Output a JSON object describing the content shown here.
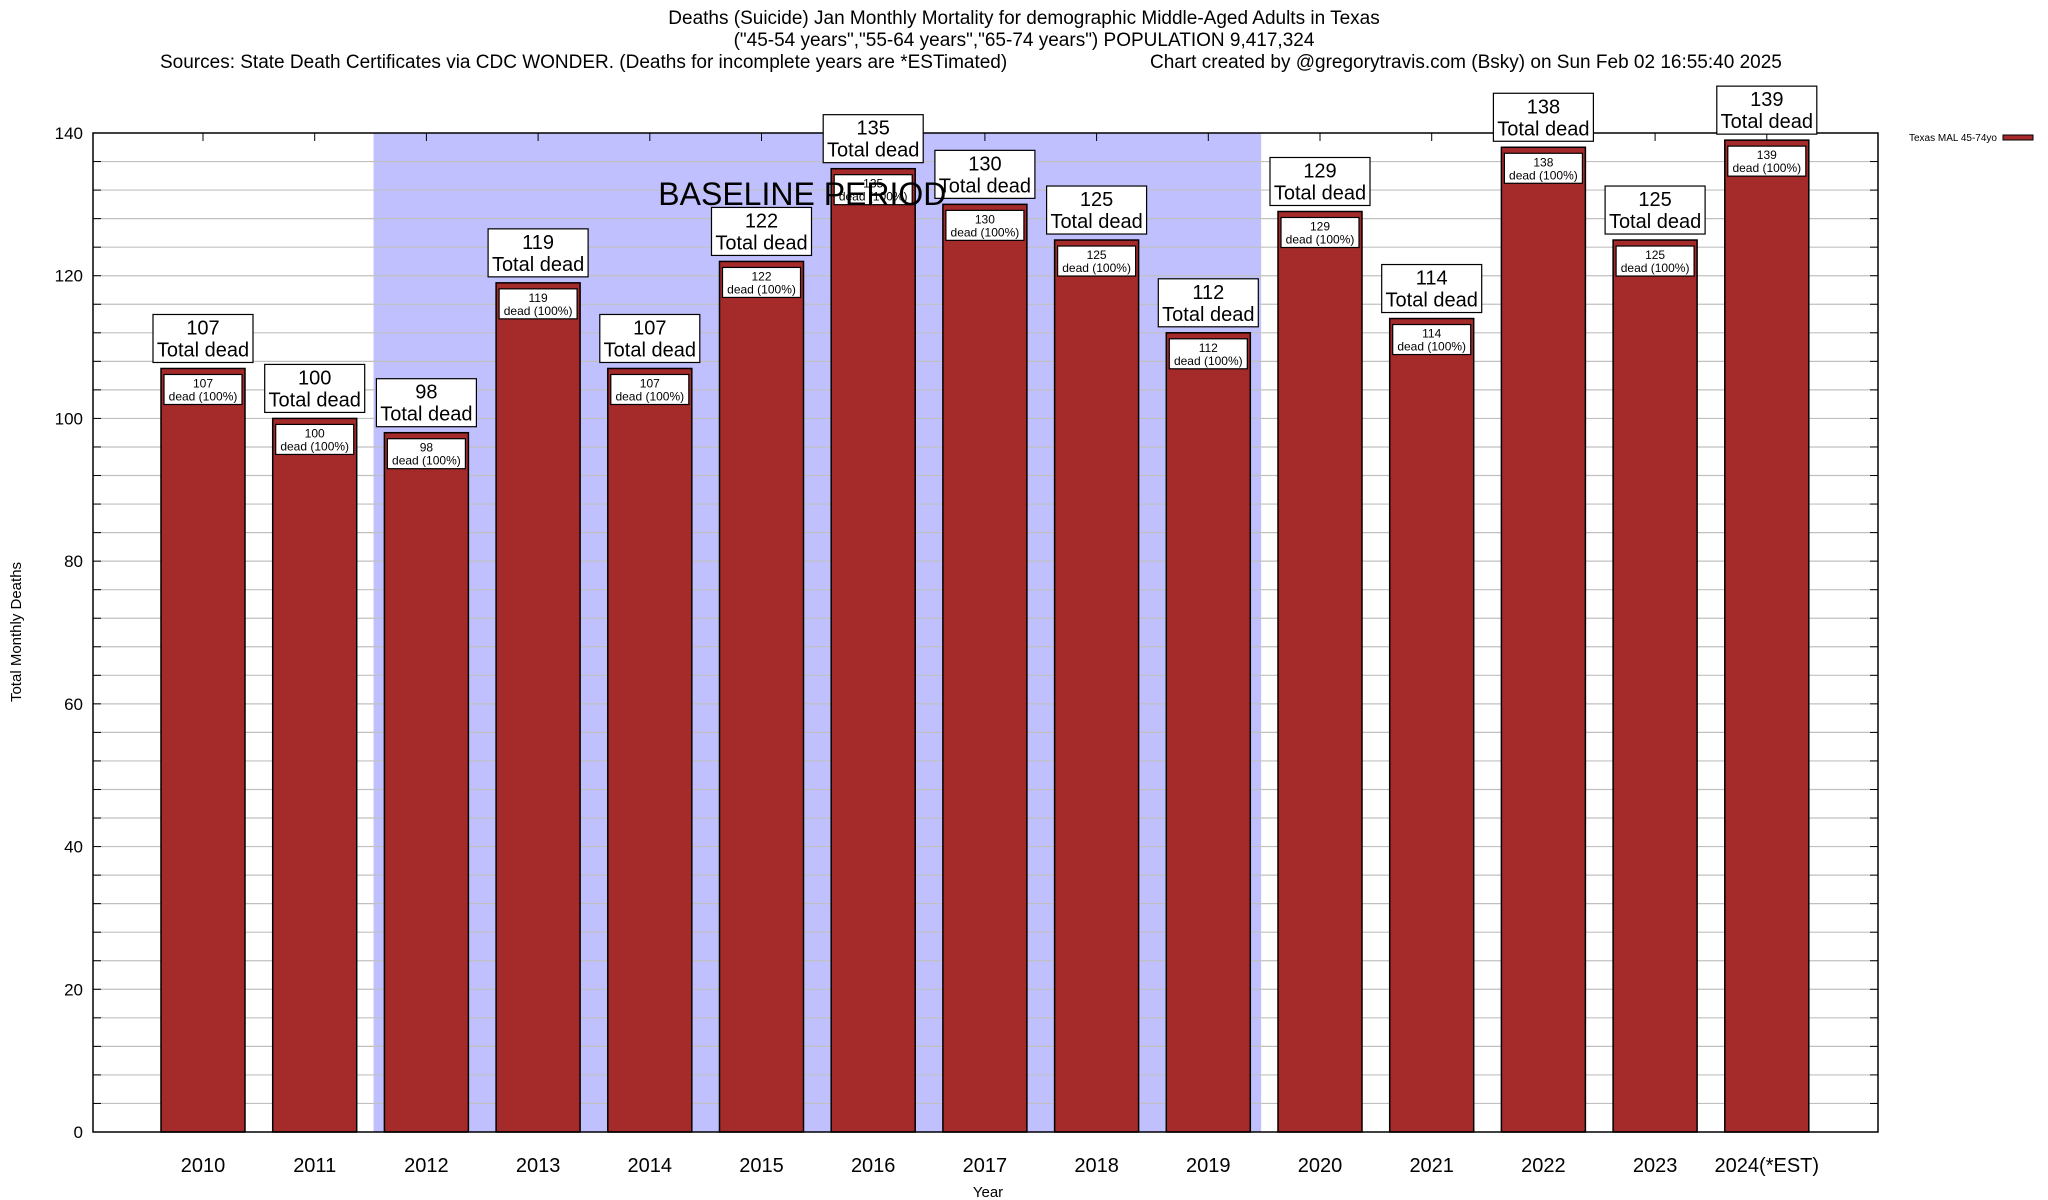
{
  "title": {
    "line1": "Deaths (Suicide) Jan Monthly Mortality for demographic Middle-Aged Adults in Texas",
    "line2": "(\"45-54 years\",\"55-64 years\",\"65-74 years\") POPULATION 9,417,324",
    "line3_left": "Sources: State Death Certificates via CDC WONDER. (Deaths for incomplete years are *ESTimated)",
    "line3_right": "Chart created by @gregorytravis.com (Bsky) on Sun Feb 02 16:55:40 2025"
  },
  "colors": {
    "bar": "#a52a2a",
    "baseline_shade": "#c0c0ff",
    "grid": "#c0c0c0"
  },
  "chart_data": {
    "type": "bar",
    "title": "Deaths (Suicide) Jan Monthly Mortality for demographic Middle-Aged Adults in Texas",
    "xlabel": "Year",
    "ylabel": "Total Monthly Deaths",
    "ylim": [
      0,
      140
    ],
    "yticks": [
      0,
      20,
      40,
      60,
      80,
      100,
      120,
      140
    ],
    "minor_grid_step": 4,
    "grid": true,
    "legend": {
      "placement": "top-right",
      "entries": [
        "Texas MAL 45-74yo"
      ]
    },
    "categories": [
      "2010",
      "2011",
      "2012",
      "2013",
      "2014",
      "2015",
      "2016",
      "2017",
      "2018",
      "2019",
      "2020",
      "2021",
      "2022",
      "2023",
      "2024(*EST)"
    ],
    "series": [
      {
        "name": "Texas MAL 45-74yo",
        "values": [
          107,
          100,
          98,
          119,
          107,
          122,
          135,
          130,
          125,
          112,
          129,
          114,
          138,
          125,
          139
        ]
      }
    ],
    "annotations": {
      "baseline_period": {
        "label": "BASELINE PERIOD",
        "from": "2012",
        "to": "2019"
      },
      "top_label_suffix": "Total dead",
      "inner_label_suffix": "dead (100%)"
    }
  }
}
